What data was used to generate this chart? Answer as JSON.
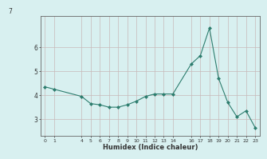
{
  "x": [
    0,
    1,
    4,
    5,
    6,
    7,
    8,
    9,
    10,
    11,
    12,
    13,
    14,
    16,
    17,
    18,
    19,
    20,
    21,
    22,
    23
  ],
  "y": [
    4.35,
    4.25,
    3.95,
    3.65,
    3.6,
    3.5,
    3.5,
    3.6,
    3.75,
    3.95,
    4.05,
    4.05,
    4.05,
    5.3,
    5.65,
    6.8,
    4.7,
    3.7,
    3.1,
    3.35,
    2.65
  ],
  "x_tick_positions": [
    0,
    1,
    4,
    5,
    6,
    7,
    8,
    9,
    10,
    11,
    12,
    13,
    14,
    16,
    17,
    18,
    19,
    20,
    21,
    22,
    23
  ],
  "x_tick_labels": [
    "0",
    "1",
    "4",
    "5",
    "6",
    "7",
    "8",
    "9",
    "10",
    "11",
    "12",
    "13",
    "14",
    "16",
    "17",
    "18",
    "19",
    "20",
    "21",
    "22",
    "23"
  ],
  "y_ticks": [
    3,
    4,
    5,
    6
  ],
  "y_tick_labels": [
    "3",
    "4",
    "5",
    "6"
  ],
  "xlabel": "Humidex (Indice chaleur)",
  "ylim": [
    2.3,
    7.3
  ],
  "xlim": [
    -0.5,
    23.5
  ],
  "line_color": "#2d7d6e",
  "bg_color": "#d8f0f0",
  "grid_color": "#c8b8b8",
  "top_label": "7"
}
